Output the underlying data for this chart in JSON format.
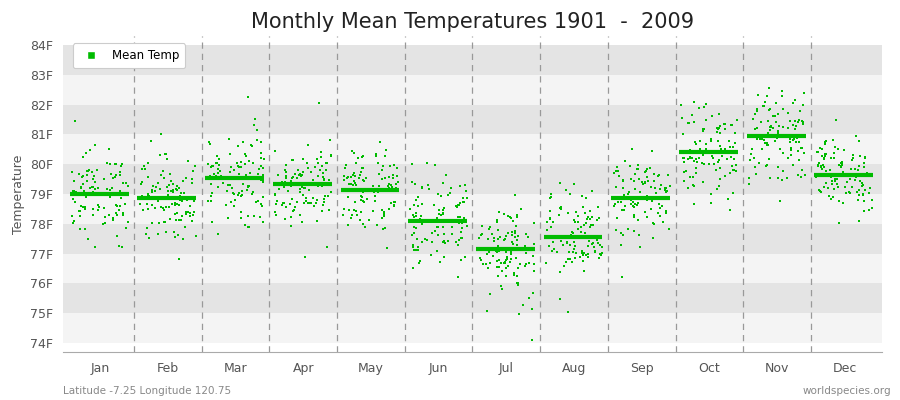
{
  "title": "Monthly Mean Temperatures 1901  -  2009",
  "ylabel": "Temperature",
  "subtitle_left": "Latitude -7.25 Longitude 120.75",
  "subtitle_right": "worldspecies.org",
  "months": [
    "Jan",
    "Feb",
    "Mar",
    "Apr",
    "May",
    "Jun",
    "Jul",
    "Aug",
    "Sep",
    "Oct",
    "Nov",
    "Dec"
  ],
  "yticks": [
    74,
    75,
    76,
    77,
    78,
    79,
    80,
    81,
    82,
    83,
    84
  ],
  "ylim": [
    73.7,
    84.3
  ],
  "dot_color": "#00bb00",
  "background_color": "#ebebeb",
  "band_light": "#f4f4f4",
  "band_dark": "#e4e4e4",
  "vline_color": "#999999",
  "n_years": 109,
  "monthly_means": [
    79.0,
    78.85,
    79.55,
    79.35,
    79.15,
    78.1,
    77.15,
    77.55,
    78.85,
    80.4,
    80.95,
    79.65
  ],
  "monthly_stds": [
    0.75,
    0.75,
    0.85,
    0.7,
    0.75,
    0.8,
    0.9,
    0.8,
    0.7,
    0.75,
    0.72,
    0.65
  ],
  "legend_label": "Mean Temp",
  "title_fontsize": 15,
  "axis_fontsize": 9,
  "tick_fontsize": 9,
  "figsize": [
    9.0,
    4.0
  ],
  "dpi": 100
}
